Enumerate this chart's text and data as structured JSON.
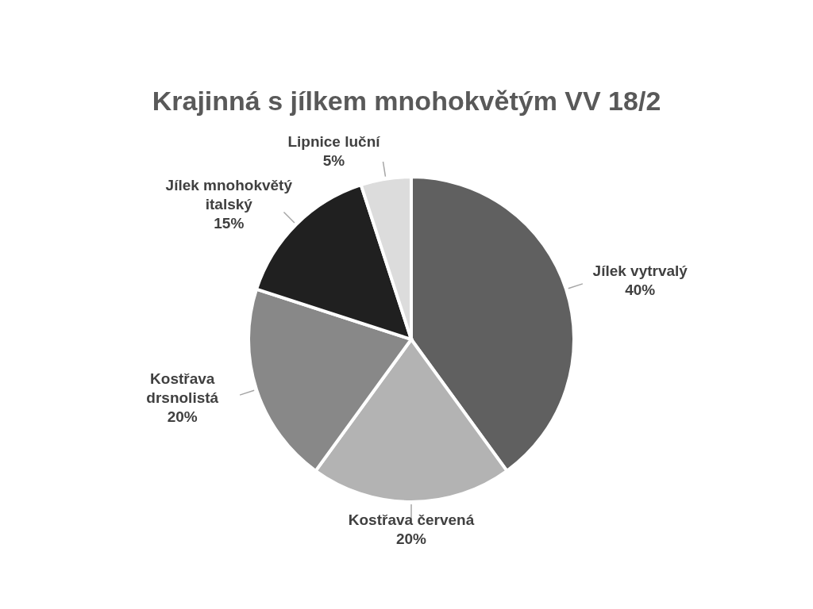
{
  "chart_data": {
    "type": "pie",
    "title": "Krajinná s jílkem mnohokvětým VV 18/2",
    "categories": [
      "Jílek vytrvalý",
      "Kostřava červená",
      "Kostřava drsnolistá",
      "Jílek mnohokvětý italský",
      "Lipnice luční"
    ],
    "values": [
      40,
      20,
      20,
      15,
      5
    ],
    "value_labels": [
      "40%",
      "20%",
      "20%",
      "15%",
      "5%"
    ],
    "colors": [
      "#606060",
      "#b3b3b3",
      "#888888",
      "#202020",
      "#dcdcdc"
    ],
    "legend": false
  }
}
